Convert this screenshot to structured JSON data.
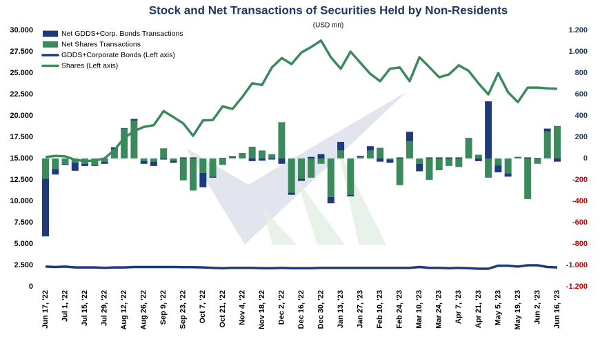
{
  "chart_data": {
    "type": "combo",
    "title": "Stock and Net Transactions  of Securities Held by Non-Residents",
    "subtitle": "(USD mn)",
    "stacked": true,
    "grid": false,
    "legend": "top-left",
    "categories": [
      "Jun 17, '22",
      null,
      "Jul 1, '22",
      null,
      "Jul 15, '22",
      null,
      "Jul 29, '22",
      null,
      "Aug 12, '22",
      null,
      "Aug 26, '22",
      null,
      "Sep 9, '22",
      null,
      "Sep 23, '22",
      null,
      "Oct 7, '22",
      null,
      "Oct 21, '22",
      null,
      "Nov 4, '22",
      null,
      "Nov 18, '22",
      null,
      "Dec 2, '22",
      null,
      "Dec 16, '22",
      null,
      "Dec 30, '22",
      null,
      "Jan 13, '23",
      null,
      "Jan 27, '23",
      null,
      "Feb 10, '23",
      null,
      "Feb 24, '23",
      null,
      "Mar 10, '23",
      null,
      "Mar 24, '23",
      null,
      "Apr 7, '23",
      null,
      "Apr 21, '23",
      null,
      "May 5, '23",
      null,
      "May 19, '23",
      null,
      "Jun 2, '23",
      null,
      "Jun 16, '23"
    ],
    "ylim": [
      0,
      30000
    ],
    "yticks": [
      0,
      {
        "value": 2500,
        "label": "2.500"
      },
      {
        "value": 5000,
        "label": "5.000"
      },
      {
        "value": 7500,
        "label": "7.500"
      },
      {
        "value": 10000,
        "label": "10.000"
      },
      {
        "value": 12500,
        "label": "12.500"
      },
      {
        "value": 15000,
        "label": "15.000"
      },
      {
        "value": 17500,
        "label": "17.500"
      },
      {
        "value": 20000,
        "label": "20.000"
      },
      {
        "value": 22500,
        "label": "22.500"
      },
      {
        "value": 25000,
        "label": "25.000"
      },
      {
        "value": 27500,
        "label": "27.500"
      },
      {
        "value": 30000,
        "label": "30.000"
      }
    ],
    "y2lim": [
      -1200,
      1200
    ],
    "y2ticks": [
      {
        "value": -1200,
        "label": "-1.200"
      },
      {
        "value": -1000,
        "label": "-1.000"
      },
      -800,
      -600,
      -400,
      -200,
      0,
      200,
      400,
      600,
      800,
      {
        "value": 1000,
        "label": "1.000"
      },
      {
        "value": 1200,
        "label": "1.200"
      }
    ],
    "y2tick_color": "#1f3864",
    "y2tick_negative_color": "#c00000",
    "series": [
      {
        "name": "Net GDDS+Corp. Bonds Transactions",
        "type": "bar",
        "axis": "y2",
        "color": "#1f3a7a",
        "values": [
          -540,
          -50,
          -10,
          -75,
          -20,
          -10,
          -20,
          20,
          5,
          15,
          -25,
          -40,
          -10,
          -20,
          10,
          10,
          -135,
          -10,
          5,
          10,
          5,
          -25,
          -20,
          -10,
          -50,
          -20,
          -20,
          15,
          40,
          -60,
          80,
          -15,
          10,
          40,
          -30,
          -30,
          10,
          90,
          -70,
          10,
          10,
          10,
          10,
          10,
          -25,
          535,
          -65,
          -30,
          5,
          10,
          5,
          25,
          -30
        ]
      },
      {
        "name": "Net Shares Transactions",
        "type": "bar",
        "axis": "y2",
        "color": "#3a8a5c",
        "values": [
          -190,
          -100,
          -50,
          -40,
          -50,
          -60,
          -30,
          85,
          280,
          355,
          -25,
          -30,
          95,
          -20,
          -205,
          -300,
          -135,
          -170,
          -60,
          10,
          45,
          110,
          75,
          40,
          340,
          -320,
          -190,
          -180,
          -50,
          -360,
          75,
          -340,
          15,
          75,
          100,
          -10,
          -250,
          160,
          -50,
          -200,
          -110,
          -70,
          -80,
          180,
          35,
          -180,
          -65,
          -140,
          10,
          -380,
          -50,
          255,
          305
        ]
      },
      {
        "name": "GDDS+Corporate Bonds (Left axis)",
        "type": "line",
        "color": "#1f3a7a",
        "values": [
          2350,
          2300,
          2350,
          2250,
          2250,
          2250,
          2200,
          2250,
          2250,
          2300,
          2300,
          2300,
          2300,
          2300,
          2280,
          2280,
          2250,
          2200,
          2150,
          2200,
          2200,
          2200,
          2150,
          2150,
          2200,
          2150,
          2150,
          2150,
          2200,
          2200,
          2200,
          2200,
          2200,
          2200,
          2200,
          2200,
          2200,
          2200,
          2300,
          2200,
          2200,
          2150,
          2200,
          2150,
          2100,
          2100,
          2450,
          2450,
          2350,
          2500,
          2500,
          2300,
          2250
        ]
      },
      {
        "name": "Shares (Left axis)",
        "type": "line",
        "color": "#3a8a5c",
        "values": [
          15160,
          15300,
          15250,
          14850,
          14700,
          14750,
          15000,
          16000,
          17400,
          18200,
          18700,
          18900,
          20550,
          19850,
          19100,
          17650,
          19450,
          19500,
          21100,
          20800,
          22200,
          23800,
          23600,
          25650,
          26750,
          26050,
          27400,
          28050,
          28800,
          26850,
          25500,
          27500,
          26200,
          24900,
          24050,
          25500,
          25650,
          24050,
          26850,
          25700,
          24500,
          24850,
          25900,
          25250,
          23800,
          22500,
          25000,
          22750,
          21600,
          23300,
          23300,
          23200,
          23150
        ]
      }
    ]
  }
}
